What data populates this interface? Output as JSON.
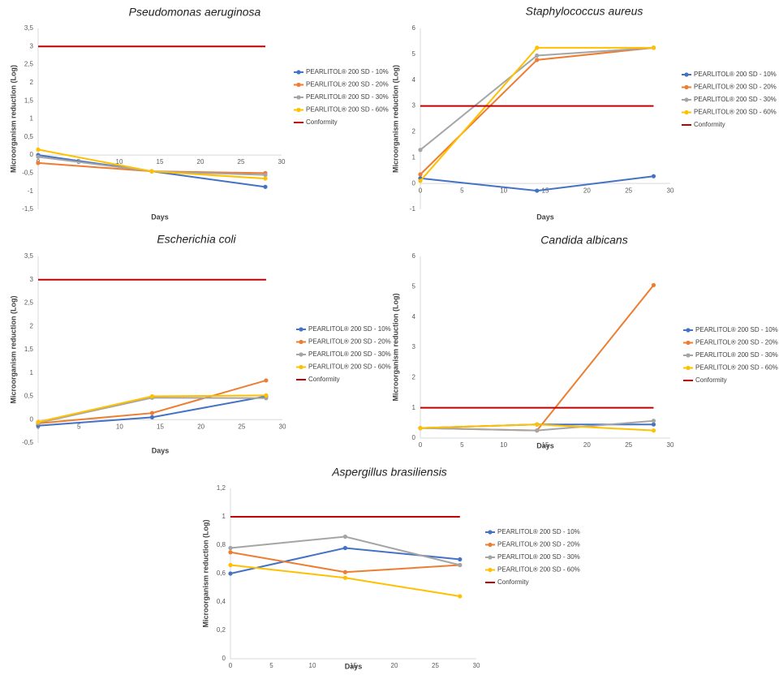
{
  "chart_data": [
    {
      "type": "line",
      "title": "Pseudomonas aeruginosa",
      "x_label": "Days",
      "y_label": "Microorganism reduction (Log)",
      "x": [
        0,
        14,
        28
      ],
      "xlim": [
        0,
        30
      ],
      "xticks": [
        0,
        5,
        10,
        15,
        20,
        25,
        30
      ],
      "ylim": [
        -1.5,
        3.5
      ],
      "yticks": [
        {
          "value": -1.5,
          "label": "-1,5"
        },
        -1,
        {
          "value": -0.5,
          "label": "-0,5"
        },
        0,
        {
          "value": 0.5,
          "label": "0,5"
        },
        1,
        {
          "value": 1.5,
          "label": "1,5"
        },
        2,
        {
          "value": 2.5,
          "label": "2,5"
        },
        3,
        {
          "value": 3.5,
          "label": "3,5"
        }
      ],
      "series": [
        {
          "name": "PEARLITOL® 200 SD - 10%",
          "color": "#4472c4",
          "markers": true,
          "values": [
            0,
            -0.45,
            -0.88
          ]
        },
        {
          "name": "PEARLITOL® 200 SD - 20%",
          "color": "#ed7d31",
          "markers": true,
          "values": [
            -0.22,
            -0.45,
            -0.5
          ]
        },
        {
          "name": "PEARLITOL® 200 SD - 30%",
          "color": "#a5a5a5",
          "markers": true,
          "values": [
            -0.05,
            -0.45,
            -0.55
          ]
        },
        {
          "name": "PEARLITOL® 200 SD - 60%",
          "color": "#ffc000",
          "markers": true,
          "values": [
            0.15,
            -0.45,
            -0.65
          ]
        },
        {
          "name": "Conformity",
          "color": "#c00000",
          "markers": false,
          "values": [
            3,
            3,
            3
          ]
        }
      ]
    },
    {
      "type": "line",
      "title": "Staphylococcus aureus",
      "x_label": "Days",
      "y_label": "Microorganism reduction (Log)",
      "x": [
        0,
        14,
        28
      ],
      "xlim": [
        0,
        30
      ],
      "xticks": [
        0,
        5,
        10,
        15,
        20,
        25,
        30
      ],
      "ylim": [
        -1,
        6
      ],
      "yticks": [
        -1,
        0,
        1,
        2,
        3,
        4,
        5,
        6
      ],
      "series": [
        {
          "name": "PEARLITOL® 200 SD - 10%",
          "color": "#4472c4",
          "markers": true,
          "values": [
            0.2,
            -0.28,
            0.28
          ]
        },
        {
          "name": "PEARLITOL® 200 SD - 20%",
          "color": "#ed7d31",
          "markers": true,
          "values": [
            0.35,
            4.78,
            5.25
          ]
        },
        {
          "name": "PEARLITOL® 200 SD - 30%",
          "color": "#a5a5a5",
          "markers": true,
          "values": [
            1.3,
            4.95,
            5.25
          ]
        },
        {
          "name": "PEARLITOL® 200 SD - 60%",
          "color": "#ffc000",
          "markers": true,
          "values": [
            0.1,
            5.25,
            5.25
          ]
        },
        {
          "name": "Conformity",
          "color": "#c00000",
          "markers": false,
          "values": [
            3,
            3,
            3
          ]
        }
      ]
    },
    {
      "type": "line",
      "title": "Escherichia coli",
      "x_label": "Days",
      "y_label": "Microorganism reduction (Log)",
      "x": [
        0,
        14,
        28
      ],
      "xlim": [
        0,
        30
      ],
      "xticks": [
        0,
        5,
        10,
        15,
        20,
        25,
        30
      ],
      "ylim": [
        -0.5,
        3.5
      ],
      "yticks": [
        {
          "value": -0.5,
          "label": "-0,5"
        },
        0,
        {
          "value": 0.5,
          "label": "0,5"
        },
        1,
        {
          "value": 1.5,
          "label": "1,5"
        },
        2,
        {
          "value": 2.5,
          "label": "2,5"
        },
        3,
        {
          "value": 3.5,
          "label": "3,5"
        }
      ],
      "series": [
        {
          "name": "PEARLITOL® 200 SD - 10%",
          "color": "#4472c4",
          "markers": true,
          "values": [
            -0.13,
            0.05,
            0.5
          ]
        },
        {
          "name": "PEARLITOL® 200 SD - 20%",
          "color": "#ed7d31",
          "markers": true,
          "values": [
            -0.08,
            0.14,
            0.84
          ]
        },
        {
          "name": "PEARLITOL® 200 SD - 30%",
          "color": "#a5a5a5",
          "markers": true,
          "values": [
            -0.07,
            0.47,
            0.46
          ]
        },
        {
          "name": "PEARLITOL® 200 SD - 60%",
          "color": "#ffc000",
          "markers": true,
          "values": [
            -0.05,
            0.5,
            0.52
          ]
        },
        {
          "name": "Conformity",
          "color": "#c00000",
          "markers": false,
          "values": [
            3,
            3,
            3
          ]
        }
      ]
    },
    {
      "type": "line",
      "title": "Candida albicans",
      "x_label": "Days",
      "y_label": "Microorganism reduction (Log)",
      "x": [
        0,
        14,
        28
      ],
      "xlim": [
        0,
        30
      ],
      "xticks": [
        0,
        5,
        10,
        15,
        20,
        25,
        30
      ],
      "ylim": [
        0,
        6
      ],
      "yticks": [
        0,
        1,
        2,
        3,
        4,
        5,
        6
      ],
      "series": [
        {
          "name": "PEARLITOL® 200 SD - 10%",
          "color": "#4472c4",
          "markers": true,
          "values": [
            0.33,
            0.45,
            0.45
          ]
        },
        {
          "name": "PEARLITOL® 200 SD - 20%",
          "color": "#ed7d31",
          "markers": true,
          "values": [
            0.33,
            0.25,
            5.05
          ]
        },
        {
          "name": "PEARLITOL® 200 SD - 30%",
          "color": "#a5a5a5",
          "markers": true,
          "values": [
            0.33,
            0.25,
            0.57
          ]
        },
        {
          "name": "PEARLITOL® 200 SD - 60%",
          "color": "#ffc000",
          "markers": true,
          "values": [
            0.33,
            0.45,
            0.25
          ]
        },
        {
          "name": "Conformity",
          "color": "#c00000",
          "markers": false,
          "values": [
            1,
            1,
            1
          ]
        }
      ]
    },
    {
      "type": "line",
      "title": "Aspergillus brasiliensis",
      "x_label": "Days",
      "y_label": "Microorganism reduction (Log)",
      "x": [
        0,
        14,
        28
      ],
      "xlim": [
        0,
        30
      ],
      "xticks": [
        0,
        5,
        10,
        15,
        20,
        25,
        30
      ],
      "ylim": [
        0,
        1.2
      ],
      "yticks": [
        0,
        {
          "value": 0.2,
          "label": "0,2"
        },
        {
          "value": 0.4,
          "label": "0,4"
        },
        {
          "value": 0.6,
          "label": "0,6"
        },
        {
          "value": 0.8,
          "label": "0,8"
        },
        1,
        {
          "value": 1.2,
          "label": "1,2"
        }
      ],
      "series": [
        {
          "name": "PEARLITOL® 200 SD - 10%",
          "color": "#4472c4",
          "markers": true,
          "values": [
            0.6,
            0.78,
            0.7
          ]
        },
        {
          "name": "PEARLITOL® 200 SD - 20%",
          "color": "#ed7d31",
          "markers": true,
          "values": [
            0.75,
            0.61,
            0.66
          ]
        },
        {
          "name": "PEARLITOL® 200 SD - 30%",
          "color": "#a5a5a5",
          "markers": true,
          "values": [
            0.78,
            0.86,
            0.66
          ]
        },
        {
          "name": "PEARLITOL® 200 SD - 60%",
          "color": "#ffc000",
          "markers": true,
          "values": [
            0.66,
            0.57,
            0.44
          ]
        },
        {
          "name": "Conformity",
          "color": "#c00000",
          "markers": false,
          "values": [
            1,
            1,
            1
          ]
        }
      ]
    }
  ]
}
